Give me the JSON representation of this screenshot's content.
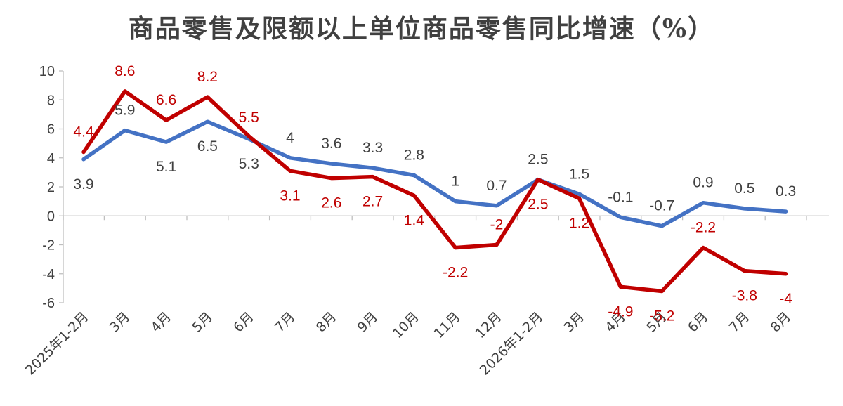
{
  "chart_data": {
    "type": "line",
    "title": "商品零售及限额以上单位商品零售同比增速（%）",
    "xlabel": "",
    "ylabel": "",
    "ylim": [
      -6,
      10
    ],
    "yticks": [
      "10",
      "8",
      "6",
      "4",
      "2",
      "0",
      "-2",
      "-4",
      "-6"
    ],
    "grid": false,
    "legend": "none",
    "categories": [
      "2025年1-2月",
      "3月",
      "4月",
      "5月",
      "6月",
      "7月",
      "8月",
      "9月",
      "10月",
      "11月",
      "12月",
      "2026年1-2月",
      "3月",
      "4月",
      "5月",
      "6月",
      "7月",
      "8月"
    ],
    "series": [
      {
        "color": "#4472C4",
        "values": [
          3.9,
          5.9,
          5.1,
          6.5,
          5.3,
          4,
          3.6,
          3.3,
          2.8,
          1,
          0.7,
          2.5,
          1.5,
          -0.1,
          -0.7,
          0.9,
          0.5,
          0.3
        ],
        "labels": [
          "3.9",
          "5.9",
          "5.1",
          "6.5",
          "5.3",
          "4",
          "3.6",
          "3.3",
          "2.8",
          "1",
          "0.7",
          "2.5",
          "1.5",
          "-0.1",
          "-0.7",
          "0.9",
          "0.5",
          "0.3"
        ]
      },
      {
        "color": "#C00000",
        "values": [
          4.4,
          8.6,
          6.6,
          8.2,
          5.5,
          3.1,
          2.6,
          2.7,
          1.4,
          -2.2,
          -2,
          2.5,
          1.2,
          -4.9,
          -5.2,
          -2.2,
          -3.8,
          -4
        ],
        "labels": [
          "4.4",
          "8.6",
          "6.6",
          "8.2",
          "5.5",
          "3.1",
          "2.6",
          "2.7",
          "1.4",
          "-2.2",
          "-2",
          "2.5",
          "1.2",
          "-4.9",
          "-5.2",
          "-2.2",
          "-3.8",
          "-4"
        ]
      }
    ]
  }
}
